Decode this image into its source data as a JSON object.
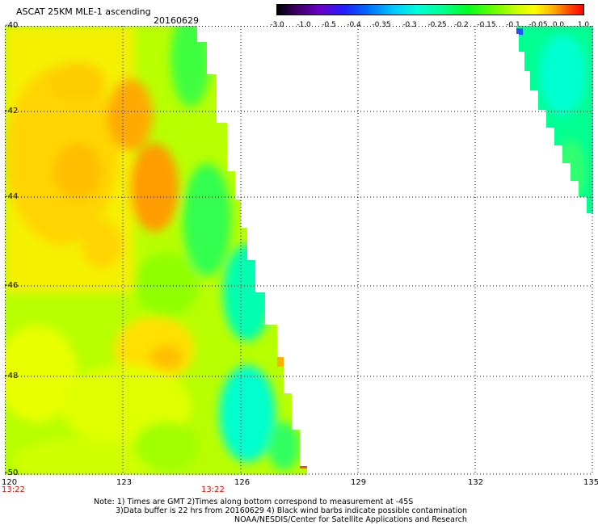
{
  "header": {
    "title": "ASCAT 25KM MLE-1 ascending",
    "date": "20160629"
  },
  "colorbar": {
    "labels": [
      "-3.0",
      "-1.0",
      "-0.5",
      "-0.4",
      "-0.35",
      "-0.3",
      "-0.25",
      "-0.2",
      "-0.15",
      "-0.1",
      "-0.05",
      "0.0",
      "1.0"
    ]
  },
  "map": {
    "lat_labels": [
      "-40",
      "-42",
      "-44",
      "-46",
      "-48",
      "-50"
    ],
    "lon_labels": [
      "120",
      "123",
      "126",
      "129",
      "132",
      "135"
    ],
    "lat_range": [
      -50,
      -40
    ],
    "lon_range": [
      120,
      135
    ],
    "time_labels": [
      "13:22",
      "13:22"
    ],
    "grid": true
  },
  "notes": {
    "line1": "Note: 1) Times are GMT 2)Times along bottom correspond to measurement at -45S",
    "line2": "3)Data buffer is 22 hrs from 20160629 4) Black wind barbs indicate possible contamination",
    "line3": "NOAA/NESDIS/Center for Satellite Applications and Research"
  }
}
